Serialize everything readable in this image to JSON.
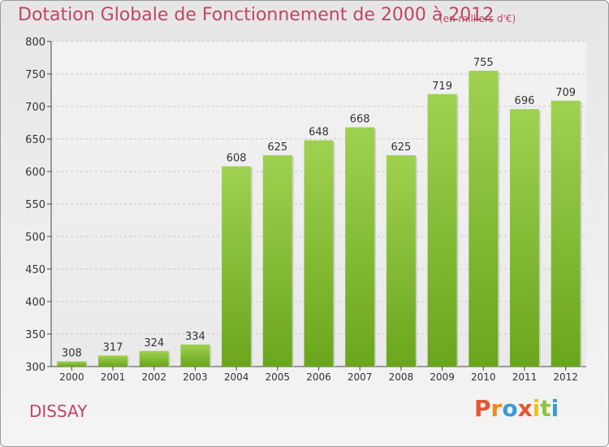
{
  "chart_data": {
    "type": "bar",
    "title": "Dotation Globale de Fonctionnement de 2000 à 2012",
    "unit_note": "(en milliers d'€)",
    "categories": [
      "2000",
      "2001",
      "2002",
      "2003",
      "2004",
      "2005",
      "2006",
      "2007",
      "2008",
      "2009",
      "2010",
      "2011",
      "2012"
    ],
    "values": [
      308,
      317,
      324,
      334,
      608,
      625,
      648,
      668,
      625,
      719,
      755,
      696,
      709
    ],
    "ylim": [
      300,
      800
    ],
    "yticks": [
      300,
      350,
      400,
      450,
      500,
      550,
      600,
      650,
      700,
      750,
      800
    ],
    "grid": true,
    "colors": {
      "bar_top": "#9fd150",
      "bar_bottom": "#6aa61c",
      "title": "#c0446a"
    }
  },
  "footer": {
    "commune": "DISSAY",
    "logo_letters": [
      "P",
      "r",
      "o",
      "x",
      "i",
      "t",
      "i"
    ],
    "logo_colors": [
      "#e8542e",
      "#f08a1c",
      "#3a9ad9",
      "#e8542e",
      "#f0c31c",
      "#8cc63f",
      "#3a9ad9"
    ]
  }
}
